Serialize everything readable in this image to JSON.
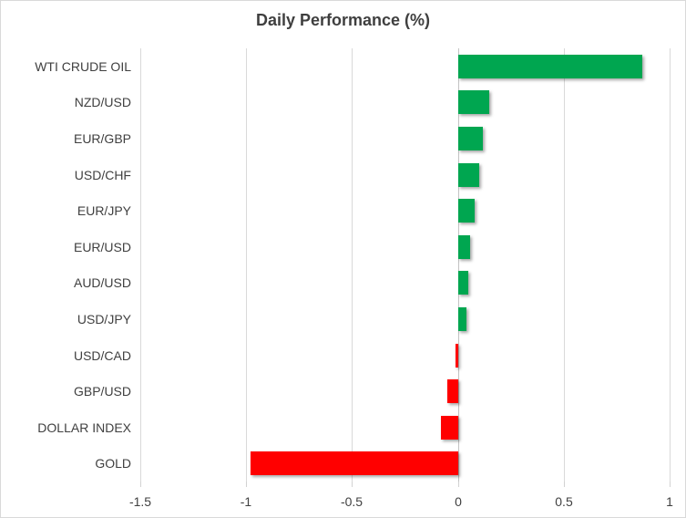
{
  "chart_data": {
    "type": "bar",
    "orientation": "horizontal",
    "title": "Daily Performance (%)",
    "categories": [
      "WTI CRUDE OIL",
      "NZD/USD",
      "EUR/GBP",
      "USD/CHF",
      "EUR/JPY",
      "EUR/USD",
      "AUD/USD",
      "USD/JPY",
      "USD/CAD",
      "GBP/USD",
      "DOLLAR INDEX",
      "GOLD"
    ],
    "values": [
      0.87,
      0.15,
      0.12,
      0.1,
      0.08,
      0.06,
      0.05,
      0.04,
      -0.01,
      -0.05,
      -0.08,
      -0.98
    ],
    "xlabel": "",
    "ylabel": "",
    "xlim": [
      -1.5,
      1.0
    ],
    "x_ticks": [
      -1.5,
      -1,
      -0.5,
      0,
      0.5,
      1
    ],
    "x_tick_labels": [
      "-1.5",
      "-1",
      "-0.5",
      "0",
      "0.5",
      "1"
    ],
    "grid": true,
    "legend_position": "none",
    "positive_color": "#00a650",
    "negative_color": "#ff0000",
    "title_color": "#3f3f3f",
    "label_color": "#404040",
    "gridline_color": "#d9d9d9"
  }
}
